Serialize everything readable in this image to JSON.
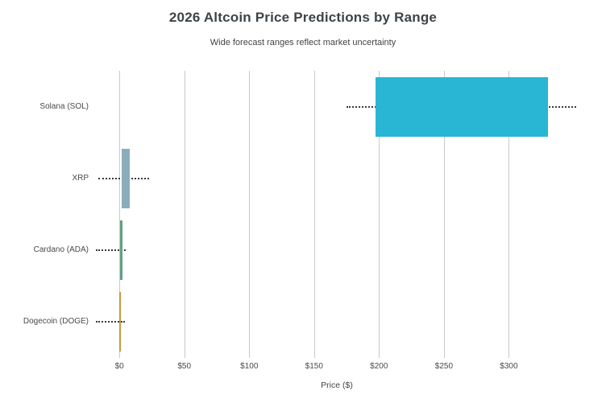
{
  "chart_data": {
    "type": "bar",
    "variant": "horizontal-range-boxes-with-dotted-whiskers",
    "title": "2026 Altcoin Price Predictions by Range",
    "subtitle": "Wide forecast ranges reflect market uncertainty",
    "xlabel": "Price ($)",
    "xlim": [
      -20,
      355
    ],
    "xticks": [
      0,
      50,
      100,
      150,
      200,
      250,
      300
    ],
    "xtick_labels": [
      "$0",
      "$50",
      "$100",
      "$150",
      "$200",
      "$250",
      "$300"
    ],
    "grid": true,
    "legend": false,
    "categories": [
      "Solana (SOL)",
      "XRP",
      "Cardano (ADA)",
      "Dogecoin (DOGE)"
    ],
    "series": [
      {
        "name": "Solana (SOL)",
        "whisker_low": 175,
        "box_low": 197,
        "box_high": 330,
        "whisker_high": 352,
        "color": "#29b5d4"
      },
      {
        "name": "XRP",
        "whisker_low": -16,
        "box_low": 1.5,
        "box_high": 8,
        "whisker_high": 23,
        "color": "#8badbb"
      },
      {
        "name": "Cardano (ADA)",
        "whisker_low": -18,
        "box_low": 0.3,
        "box_high": 2.5,
        "whisker_high": 5,
        "color": "#5fa183"
      },
      {
        "name": "Dogecoin (DOGE)",
        "whisker_low": -18,
        "box_low": 0.1,
        "box_high": 0.7,
        "whisker_high": 4,
        "color": "#c49a3c"
      }
    ],
    "colors": {
      "gridline": "#c9c9c9",
      "whisker": "#3a3a3a",
      "title_text": "#3e4347",
      "background": "#ffffff"
    }
  }
}
